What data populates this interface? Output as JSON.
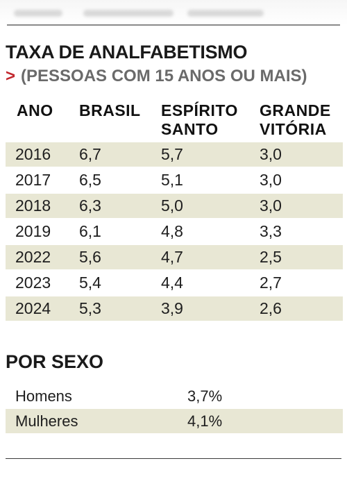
{
  "header": {
    "title": "TAXA DE ANALFABETISMO",
    "subtitle_arrow": ">",
    "subtitle": "(PESSOAS COM 15 ANOS OU MAIS)"
  },
  "table": {
    "columns": [
      {
        "line1": "ANO",
        "line2": ""
      },
      {
        "line1": "BRASIL",
        "line2": ""
      },
      {
        "line1": "ESPÍRITO",
        "line2": "SANTO"
      },
      {
        "line1": "GRANDE",
        "line2": "VITÓRIA"
      }
    ],
    "rows": [
      {
        "ano": "2016",
        "brasil": "6,7",
        "es": "5,7",
        "gv": "3,0"
      },
      {
        "ano": "2017",
        "brasil": "6,5",
        "es": "5,1",
        "gv": "3,0"
      },
      {
        "ano": "2018",
        "brasil": "6,3",
        "es": "5,0",
        "gv": "3,0"
      },
      {
        "ano": "2019",
        "brasil": "6,1",
        "es": "4,8",
        "gv": "3,3"
      },
      {
        "ano": "2022",
        "brasil": "5,6",
        "es": "4,7",
        "gv": "2,5"
      },
      {
        "ano": "2023",
        "brasil": "5,4",
        "es": "4,4",
        "gv": "2,7"
      },
      {
        "ano": "2024",
        "brasil": "5,3",
        "es": "3,9",
        "gv": "2,6"
      }
    ]
  },
  "sexo": {
    "title": "POR SEXO",
    "rows": [
      {
        "label": "Homens",
        "value": "3,7%"
      },
      {
        "label": "Mulheres",
        "value": "4,1%"
      }
    ]
  },
  "colors": {
    "row_shade": "#e8e7d4",
    "arrow": "#c2272d",
    "subtitle": "#6a6a6a"
  }
}
